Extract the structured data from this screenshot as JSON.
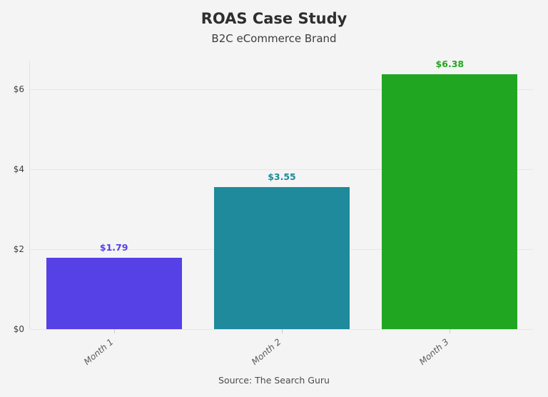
{
  "chart_data": {
    "type": "bar",
    "title": "ROAS Case Study",
    "subtitle": "B2C eCommerce Brand",
    "source": "Source: The Search Guru",
    "categories": [
      "Month 1",
      "Month 2",
      "Month 3"
    ],
    "values": [
      1.79,
      3.55,
      6.38
    ],
    "value_labels": [
      "$1.79",
      "$3.55",
      "$6.38"
    ],
    "bar_colors": [
      "#5541e6",
      "#1e8a9b",
      "#21a621"
    ],
    "y_ticks": [
      "$0",
      "$2",
      "$4",
      "$6"
    ],
    "y_tick_values": [
      0,
      2,
      4,
      6
    ],
    "ylim": [
      0,
      6.7
    ],
    "grid": true,
    "background_color": "#f4f4f4",
    "xlabel": "",
    "ylabel": ""
  }
}
